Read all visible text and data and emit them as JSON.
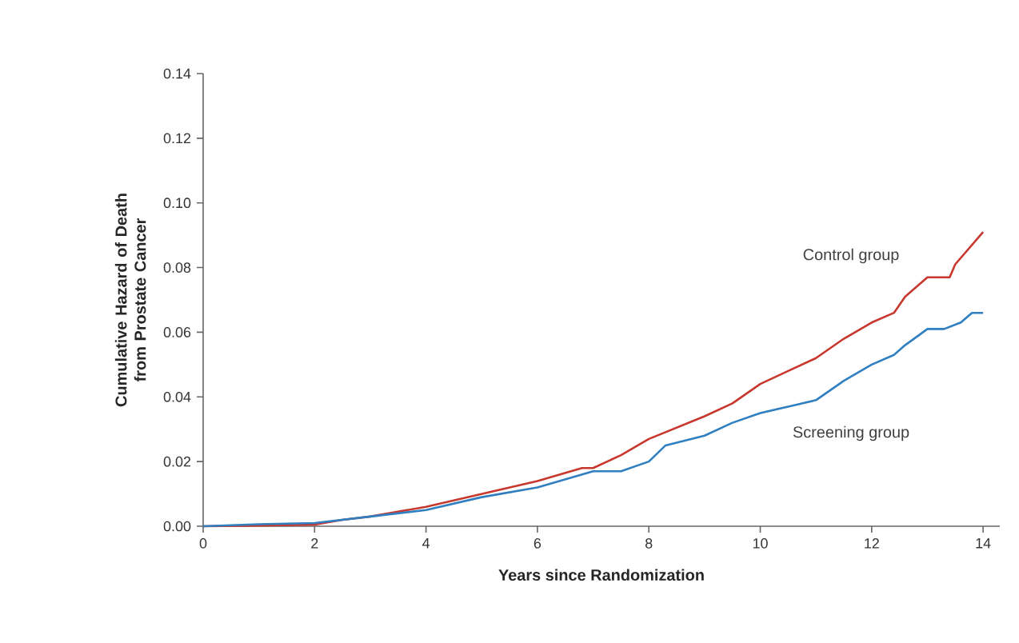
{
  "chart_data": {
    "type": "line",
    "xlabel": "Years since Randomization",
    "ylabel": "Cumulative Hazard of Death from Prostate Cancer",
    "xlim": [
      0,
      14.3
    ],
    "ylim": [
      0,
      0.14
    ],
    "xticks": [
      0,
      2,
      4,
      6,
      8,
      10,
      12,
      14
    ],
    "yticks": [
      {
        "value": 0,
        "label": "0.00"
      },
      {
        "value": 0.02,
        "label": "0.02"
      },
      {
        "value": 0.04,
        "label": "0.04"
      },
      {
        "value": 0.06,
        "label": "0.06"
      },
      {
        "value": 0.08,
        "label": "0.08"
      },
      {
        "value": 0.1,
        "label": "0.10"
      },
      {
        "value": 0.12,
        "label": "0.12"
      },
      {
        "value": 0.14,
        "label": "0.14"
      }
    ],
    "grid": false,
    "legend": false,
    "marker": "none",
    "line_style": "solid",
    "series": [
      {
        "name": "Control group",
        "color": "#c8372d",
        "x": [
          0,
          1,
          2,
          2.5,
          3,
          4,
          5,
          6,
          6.8,
          7,
          7.5,
          8,
          9,
          9.5,
          10,
          10.5,
          11,
          11.5,
          12,
          12.4,
          12.6,
          13,
          13.4,
          13.5,
          14
        ],
        "values": [
          0,
          0.0002,
          0.0005,
          0.002,
          0.003,
          0.006,
          0.01,
          0.014,
          0.018,
          0.018,
          0.022,
          0.027,
          0.034,
          0.038,
          0.044,
          0.048,
          0.052,
          0.058,
          0.063,
          0.066,
          0.071,
          0.077,
          0.077,
          0.081,
          0.091
        ]
      },
      {
        "name": "Screening group",
        "color": "#2f7fc1",
        "x": [
          0,
          1,
          2,
          3,
          4,
          5,
          6,
          7,
          7.5,
          8,
          8.3,
          9,
          9.5,
          10,
          10.5,
          11,
          11.5,
          12,
          12.4,
          12.6,
          13,
          13.3,
          13.6,
          13.8,
          14
        ],
        "values": [
          0,
          0.0006,
          0.001,
          0.003,
          0.005,
          0.009,
          0.012,
          0.017,
          0.017,
          0.02,
          0.025,
          0.028,
          0.032,
          0.035,
          0.037,
          0.039,
          0.045,
          0.05,
          0.053,
          0.056,
          0.061,
          0.061,
          0.063,
          0.066,
          0.066
        ]
      }
    ]
  }
}
